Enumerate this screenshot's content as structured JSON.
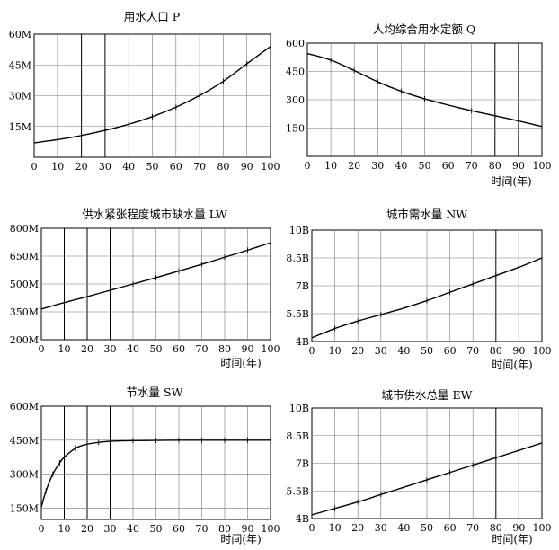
{
  "chart_data": [
    {
      "type": "line",
      "title": "用水人口 P",
      "xlabel": "",
      "ylabel": "",
      "x_ticks": [
        0,
        10,
        20,
        30,
        40,
        50,
        60,
        70,
        80,
        90,
        100
      ],
      "y_ticks": [
        15,
        30,
        45,
        60
      ],
      "y_tick_labels": [
        "15M",
        "30M",
        "45M",
        "60M"
      ],
      "ylim": [
        0,
        60
      ],
      "xlim": [
        0,
        100
      ],
      "grid": true,
      "series": [
        {
          "x": [
            0,
            10,
            20,
            30,
            40,
            50,
            60,
            70,
            80,
            90,
            100
          ],
          "values": [
            7.0,
            8.6,
            10.6,
            13.1,
            16.1,
            19.8,
            24.4,
            30.1,
            37.0,
            45.6,
            54.0
          ]
        }
      ]
    },
    {
      "type": "line",
      "title": "人均综合用水定额 Q",
      "xlabel": "时间(年)",
      "ylabel": "",
      "x_ticks": [
        0,
        10,
        20,
        30,
        40,
        50,
        60,
        70,
        80,
        90,
        100
      ],
      "y_ticks": [
        150,
        300,
        450,
        600
      ],
      "y_tick_labels": [
        "150",
        "300",
        "450",
        "600"
      ],
      "ylim": [
        0,
        600
      ],
      "xlim": [
        0,
        100
      ],
      "grid": true,
      "series": [
        {
          "x": [
            0,
            10,
            20,
            30,
            40,
            50,
            60,
            70,
            80,
            90,
            100
          ],
          "values": [
            545,
            510,
            455,
            395,
            345,
            305,
            272,
            242,
            215,
            188,
            158
          ]
        }
      ]
    },
    {
      "type": "line",
      "title": "供水紧张程度城市缺水量 LW",
      "xlabel": "时间(年)",
      "ylabel": "",
      "x_ticks": [
        0,
        10,
        20,
        30,
        40,
        50,
        60,
        70,
        80,
        90,
        100
      ],
      "y_ticks": [
        200,
        350,
        500,
        650,
        800
      ],
      "y_tick_labels": [
        "200M",
        "350M",
        "500M",
        "650M",
        "800M"
      ],
      "ylim": [
        200,
        800
      ],
      "xlim": [
        0,
        100
      ],
      "grid": true,
      "series": [
        {
          "x": [
            0,
            10,
            20,
            30,
            40,
            50,
            60,
            70,
            80,
            90,
            100
          ],
          "values": [
            365,
            400,
            432,
            466,
            500,
            534,
            570,
            606,
            644,
            682,
            722
          ]
        }
      ]
    },
    {
      "type": "line",
      "title": "城市需水量 NW",
      "xlabel": "时间(年)",
      "ylabel": "",
      "x_ticks": [
        0,
        10,
        20,
        30,
        40,
        50,
        60,
        70,
        80,
        90,
        100
      ],
      "y_ticks": [
        4,
        5.5,
        7,
        8.5,
        10
      ],
      "y_tick_labels": [
        "4B",
        "5.5B",
        "7B",
        "8.5B",
        "10B"
      ],
      "ylim": [
        4,
        10
      ],
      "xlim": [
        0,
        100
      ],
      "grid": true,
      "series": [
        {
          "x": [
            0,
            10,
            20,
            30,
            40,
            50,
            60,
            70,
            80,
            90,
            100
          ],
          "values": [
            4.2,
            4.7,
            5.1,
            5.45,
            5.8,
            6.2,
            6.65,
            7.1,
            7.55,
            8.0,
            8.5
          ]
        }
      ]
    },
    {
      "type": "line",
      "title": "节水量 SW",
      "xlabel": "时间(年)",
      "ylabel": "",
      "x_ticks": [
        0,
        10,
        20,
        30,
        40,
        50,
        60,
        70,
        80,
        90,
        100
      ],
      "y_ticks": [
        150,
        300,
        450,
        600
      ],
      "y_tick_labels": [
        "150M",
        "300M",
        "450M",
        "600M"
      ],
      "ylim": [
        100,
        600
      ],
      "xlim": [
        0,
        100
      ],
      "grid": true,
      "series": [
        {
          "x": [
            0,
            2,
            5,
            8,
            10,
            15,
            20,
            25,
            30,
            40,
            50,
            60,
            70,
            80,
            90,
            100
          ],
          "values": [
            155,
            225,
            300,
            350,
            375,
            415,
            432,
            440,
            445,
            448,
            449,
            450,
            450,
            450,
            450,
            450
          ]
        }
      ]
    },
    {
      "type": "line",
      "title": "城市供水总量 EW",
      "xlabel": "时间(年)",
      "ylabel": "",
      "x_ticks": [
        0,
        10,
        20,
        30,
        40,
        50,
        60,
        70,
        80,
        90,
        100
      ],
      "y_ticks": [
        4,
        5.5,
        7,
        8.5,
        10
      ],
      "y_tick_labels": [
        "4B",
        "5.5B",
        "7B",
        "8.5B",
        "10B"
      ],
      "ylim": [
        4,
        10
      ],
      "xlim": [
        0,
        100
      ],
      "grid": true,
      "series": [
        {
          "x": [
            0,
            10,
            20,
            30,
            40,
            50,
            60,
            70,
            80,
            90,
            100
          ],
          "values": [
            4.2,
            4.55,
            4.9,
            5.3,
            5.7,
            6.1,
            6.5,
            6.9,
            7.3,
            7.7,
            8.1
          ]
        }
      ]
    }
  ]
}
